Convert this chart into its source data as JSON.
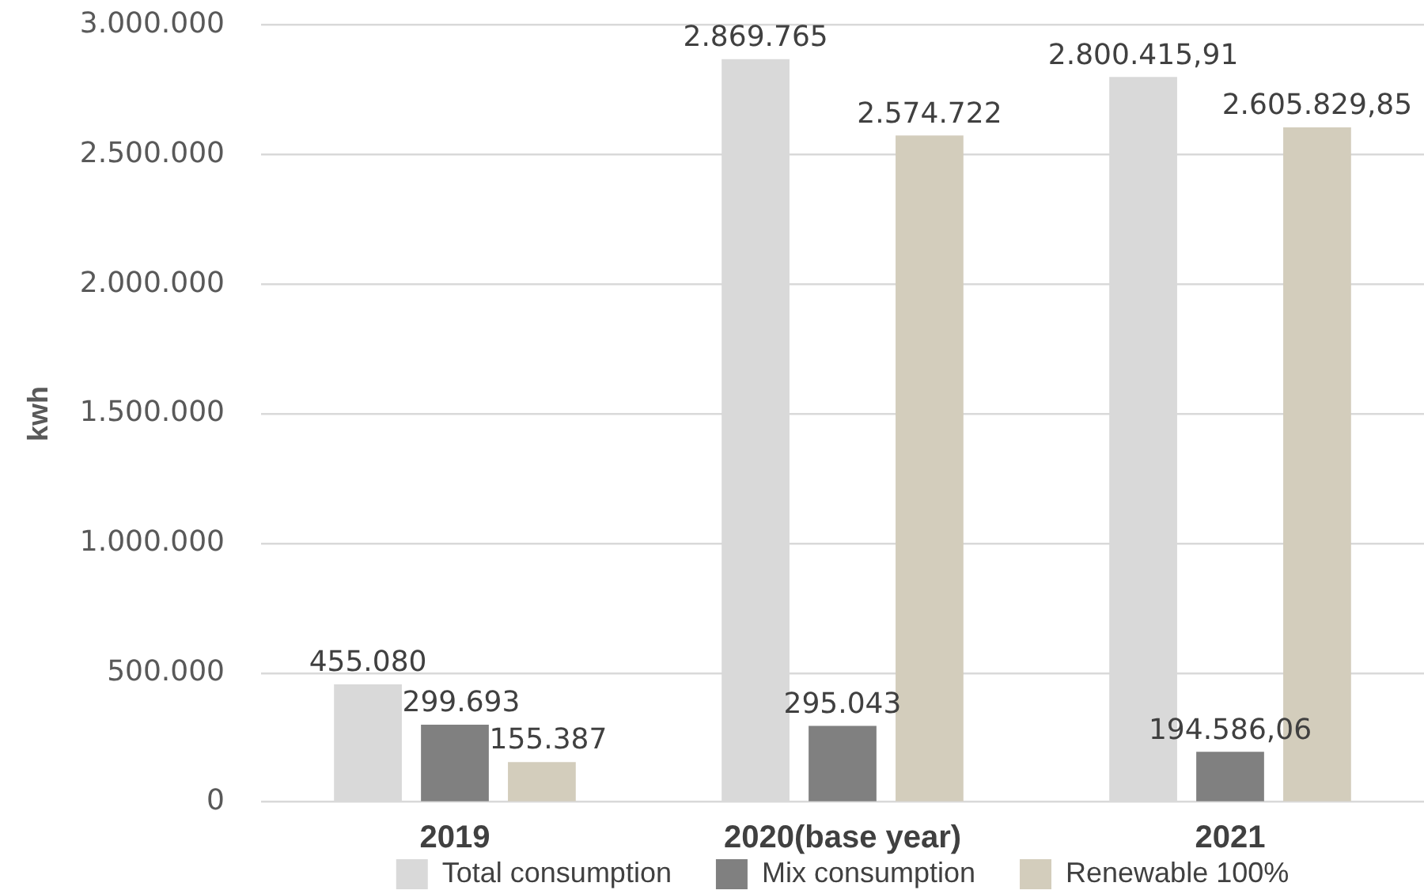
{
  "chart_data": {
    "type": "bar",
    "ylabel": "kwh",
    "categories": [
      "2019",
      "2020(base year)",
      "2021"
    ],
    "series": [
      {
        "name": "Total consumption",
        "color": "#d9d9d9",
        "values": [
          455080,
          2869765,
          2800415.91
        ],
        "value_labels": [
          "455.080",
          "2.869.765",
          "2.800.415,91"
        ]
      },
      {
        "name": "Mix consumption",
        "color": "#808080",
        "values": [
          299693,
          295043,
          194586.06
        ],
        "value_labels": [
          "299.693",
          "295.043",
          "194.586,06"
        ]
      },
      {
        "name": "Renewable 100%",
        "color": "#d3cdbc",
        "values": [
          155387,
          2574722,
          2605829.85
        ],
        "value_labels": [
          "155.387",
          "2.574.722",
          "2.605.829,85"
        ]
      }
    ],
    "ylim": [
      0,
      3000000
    ],
    "yticks": [
      0,
      {
        "value": 500000,
        "label": "500.000"
      },
      {
        "value": 1000000,
        "label": "1.000.000"
      },
      {
        "value": 1500000,
        "label": "1.500.000"
      },
      {
        "value": 2000000,
        "label": "2.000.000"
      },
      {
        "value": 2500000,
        "label": "2.500.000"
      },
      {
        "value": 3000000,
        "label": "3.000.000"
      }
    ],
    "grid": "y",
    "legend": "bottom"
  }
}
